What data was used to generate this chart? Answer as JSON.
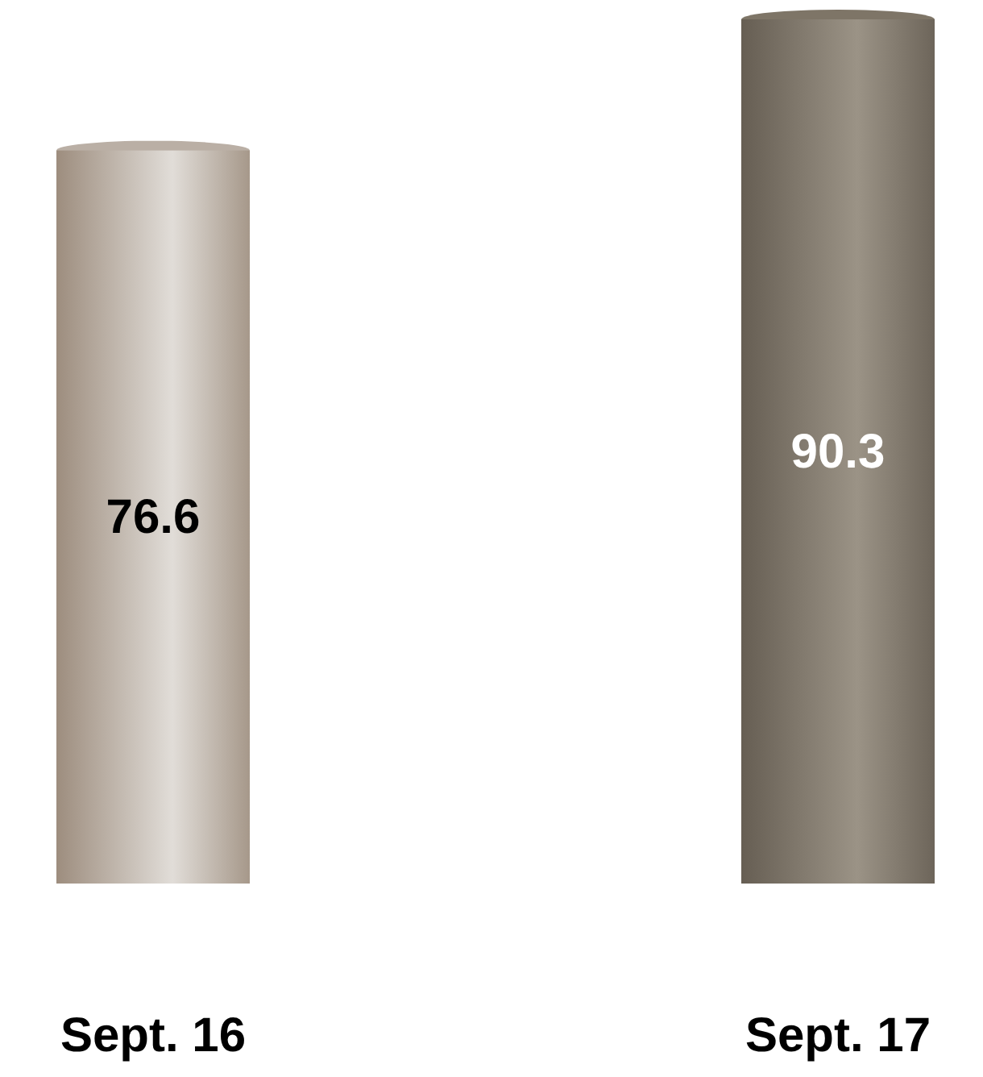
{
  "chart_data": {
    "type": "bar",
    "categories": [
      "Sept. 16",
      "Sept. 17"
    ],
    "values": [
      76.6,
      90.3
    ],
    "colors": [
      "#cbc3bb",
      "#8c8273"
    ],
    "data_labels": true,
    "relative": false
  }
}
